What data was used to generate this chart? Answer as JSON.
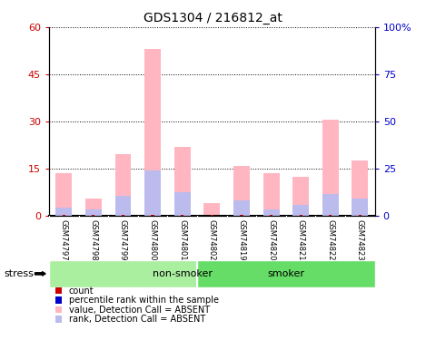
{
  "title": "GDS1304 / 216812_at",
  "samples": [
    "GSM74797",
    "GSM74798",
    "GSM74799",
    "GSM74800",
    "GSM74801",
    "GSM74802",
    "GSM74819",
    "GSM74820",
    "GSM74821",
    "GSM74822",
    "GSM74823"
  ],
  "pink_values": [
    13.5,
    5.5,
    19.5,
    53.0,
    22.0,
    4.0,
    16.0,
    13.5,
    12.5,
    30.5,
    17.5
  ],
  "blue_values": [
    2.5,
    2.0,
    6.5,
    14.5,
    7.5,
    0.0,
    5.0,
    2.0,
    3.5,
    7.0,
    5.5
  ],
  "red_values": [
    0.4,
    0.3,
    0.4,
    0.4,
    0.4,
    0.3,
    0.4,
    0.4,
    0.4,
    0.4,
    0.4
  ],
  "ylim_left": [
    0,
    60
  ],
  "ylim_right": [
    0,
    100
  ],
  "yticks_left": [
    0,
    15,
    30,
    45,
    60
  ],
  "ytick_labels_left": [
    "0",
    "15",
    "30",
    "45",
    "60"
  ],
  "ytick_labels_right": [
    "0",
    "25",
    "50",
    "75",
    "100%"
  ],
  "non_smoker_count": 5,
  "smoker_count": 6,
  "ns_color": "#90EE90",
  "sm_color": "#66DD66",
  "bar_width": 0.55,
  "background_color": "#ffffff",
  "left_tick_color": "#CC0000",
  "right_tick_color": "#0000CC",
  "legend_items": [
    {
      "label": "count",
      "color": "#CC0000"
    },
    {
      "label": "percentile rank within the sample",
      "color": "#0000CC"
    },
    {
      "label": "value, Detection Call = ABSENT",
      "color": "#FFB6C1"
    },
    {
      "label": "rank, Detection Call = ABSENT",
      "color": "#BBBBEE"
    }
  ]
}
